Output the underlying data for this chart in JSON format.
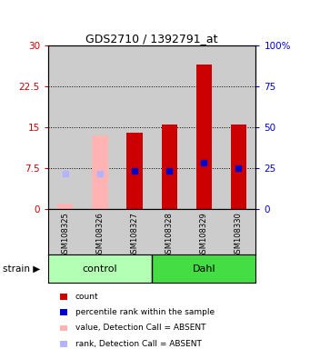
{
  "title": "GDS2710 / 1392791_at",
  "samples": [
    "GSM108325",
    "GSM108326",
    "GSM108327",
    "GSM108328",
    "GSM108329",
    "GSM108330"
  ],
  "count_values": [
    1.0,
    13.5,
    14.0,
    15.5,
    26.5,
    15.5
  ],
  "rank_values": [
    6.5,
    6.5,
    7.0,
    7.0,
    8.5,
    7.5
  ],
  "absent": [
    true,
    true,
    false,
    false,
    false,
    false
  ],
  "ylim_left": [
    0,
    30
  ],
  "ylim_right": [
    0,
    100
  ],
  "yticks_left": [
    0,
    7.5,
    15,
    22.5,
    30
  ],
  "ytick_labels_left": [
    "0",
    "7.5",
    "15",
    "22.5",
    "30"
  ],
  "ytick_labels_right": [
    "0",
    "25",
    "50",
    "75",
    "100%"
  ],
  "groups": [
    {
      "label": "control",
      "start": 0,
      "end": 3,
      "color": "#b3ffb3"
    },
    {
      "label": "Dahl",
      "start": 3,
      "end": 6,
      "color": "#44dd44"
    }
  ],
  "color_bar_present": "#cc0000",
  "color_bar_absent": "#ffb3b3",
  "color_rank_present": "#0000cc",
  "color_rank_absent": "#b3b3ff",
  "bg_color": "#cccccc",
  "legend_items": [
    {
      "color": "#cc0000",
      "label": "count"
    },
    {
      "color": "#0000cc",
      "label": "percentile rank within the sample"
    },
    {
      "color": "#ffb3b3",
      "label": "value, Detection Call = ABSENT"
    },
    {
      "color": "#b3b3ff",
      "label": "rank, Detection Call = ABSENT"
    }
  ]
}
